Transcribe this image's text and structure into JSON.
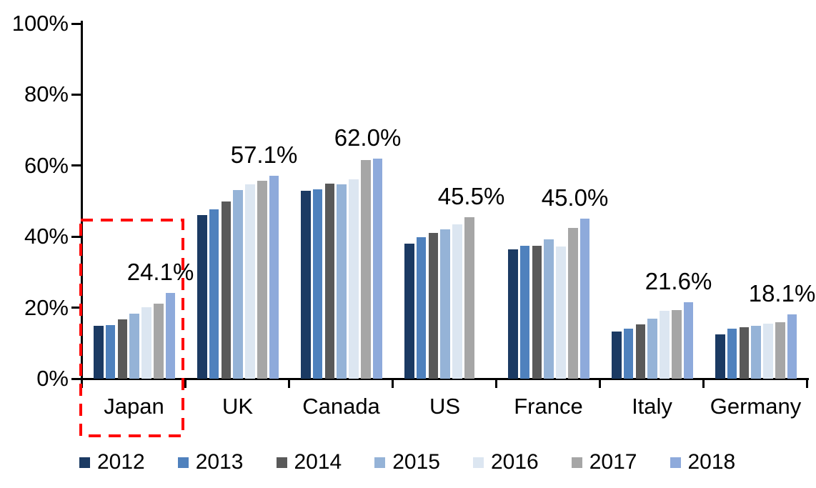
{
  "chart_data": {
    "type": "bar",
    "title": "",
    "xlabel": "",
    "ylabel": "",
    "ylim": [
      0,
      100
    ],
    "grid": false,
    "legend_position": "bottom",
    "yticks": [
      "0%",
      "20%",
      "40%",
      "60%",
      "80%",
      "100%"
    ],
    "categories": [
      "Japan",
      "UK",
      "Canada",
      "US",
      "France",
      "Italy",
      "Germany"
    ],
    "series": [
      {
        "name": "2012",
        "color": "#1B3A63",
        "values": [
          14.9,
          46.1,
          53.0,
          38.0,
          36.5,
          13.2,
          12.5
        ]
      },
      {
        "name": "2013",
        "color": "#4F81BD",
        "values": [
          15.0,
          47.6,
          53.4,
          39.8,
          37.5,
          14.1,
          14.1
        ]
      },
      {
        "name": "2014",
        "color": "#595959",
        "values": [
          16.8,
          49.9,
          54.9,
          41.0,
          37.5,
          15.2,
          14.4
        ]
      },
      {
        "name": "2015",
        "color": "#95B3D7",
        "values": [
          18.3,
          53.2,
          54.8,
          42.0,
          39.2,
          16.9,
          14.8
        ]
      },
      {
        "name": "2016",
        "color": "#DCE6F1",
        "values": [
          20.2,
          54.7,
          56.2,
          43.5,
          37.3,
          19.1,
          15.4
        ]
      },
      {
        "name": "2017",
        "color": "#A6A6A6",
        "values": [
          21.2,
          55.8,
          61.6,
          45.5,
          42.4,
          19.3,
          15.8
        ]
      },
      {
        "name": "2018",
        "color": "#8EAADB",
        "values": [
          24.1,
          57.1,
          62.0,
          null,
          45.0,
          21.6,
          18.1
        ]
      }
    ],
    "data_labels": [
      "24.1%",
      "57.1%",
      "62.0%",
      "45.5%",
      "45.0%",
      "21.6%",
      "18.1%"
    ],
    "annotations": {
      "highlight": {
        "category": "Japan",
        "shape": "dashed-box",
        "color": "#FF0000"
      }
    }
  }
}
